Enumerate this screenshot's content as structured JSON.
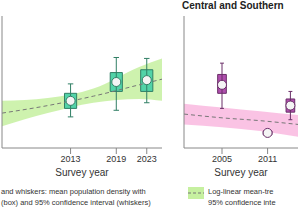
{
  "chart_data": [
    {
      "type": "box",
      "x_label": "Survey year",
      "x": [
        2013,
        2019,
        2023
      ],
      "mean": [
        5.0,
        7.0,
        7.2
      ],
      "box_low": [
        4.2,
        6.0,
        6.0
      ],
      "box_high": [
        5.8,
        8.0,
        8.3
      ],
      "whisker_low": [
        3.3,
        4.0,
        4.8
      ],
      "whisker_high": [
        6.8,
        9.6,
        9.5
      ],
      "color": "#52d3a8",
      "marker": "circle",
      "xlim": [
        2004,
        2025
      ],
      "xticks": [
        2013,
        2019,
        2023
      ],
      "ylim": [
        0,
        14
      ],
      "tick_labels": "x",
      "trend": {
        "x": [
          2004,
          2010,
          2016,
          2022,
          2025
        ],
        "values": [
          3.7,
          4.5,
          5.5,
          6.7,
          7.3
        ],
        "lower": [
          2.3,
          3.7,
          4.8,
          5.2,
          5.0
        ],
        "upper": [
          5.0,
          5.3,
          6.3,
          8.6,
          9.5
        ],
        "color": "#777777",
        "band_color": "#c6f0a0",
        "line_style": "dashed"
      }
    },
    {
      "type": "box",
      "title": "Central and Southern",
      "x_label": "Survey year",
      "x": [
        2005,
        2011,
        2014
      ],
      "mean": [
        6.7,
        1.6,
        4.5
      ],
      "box_low": [
        5.8,
        1.4,
        3.8
      ],
      "box_high": [
        7.8,
        1.8,
        5.2
      ],
      "whisker_low": [
        4.2,
        1.4,
        3.0
      ],
      "whisker_high": [
        9.0,
        1.8,
        6.0
      ],
      "color": "#b04fae",
      "marker": "circle",
      "xlim": [
        2000,
        2015
      ],
      "xticks": [
        2005,
        2011
      ],
      "ylim": [
        0,
        14
      ],
      "tick_labels": "x",
      "trend": {
        "x": [
          2000,
          2005,
          2010,
          2015
        ],
        "values": [
          3.6,
          3.2,
          2.9,
          2.5
        ],
        "lower": [
          2.5,
          2.2,
          1.8,
          1.2
        ],
        "upper": [
          4.7,
          4.3,
          3.9,
          3.5
        ],
        "color": "#777777",
        "band_color": "#f9b9df",
        "line_style": "dashed"
      }
    }
  ],
  "annotations": [
    [
      "and whiskers: mean population density with",
      "(box) and 95% confidence interval (whiskers)"
    ],
    [
      "Log-linear mean-tre",
      "95% confidence inte"
    ]
  ]
}
